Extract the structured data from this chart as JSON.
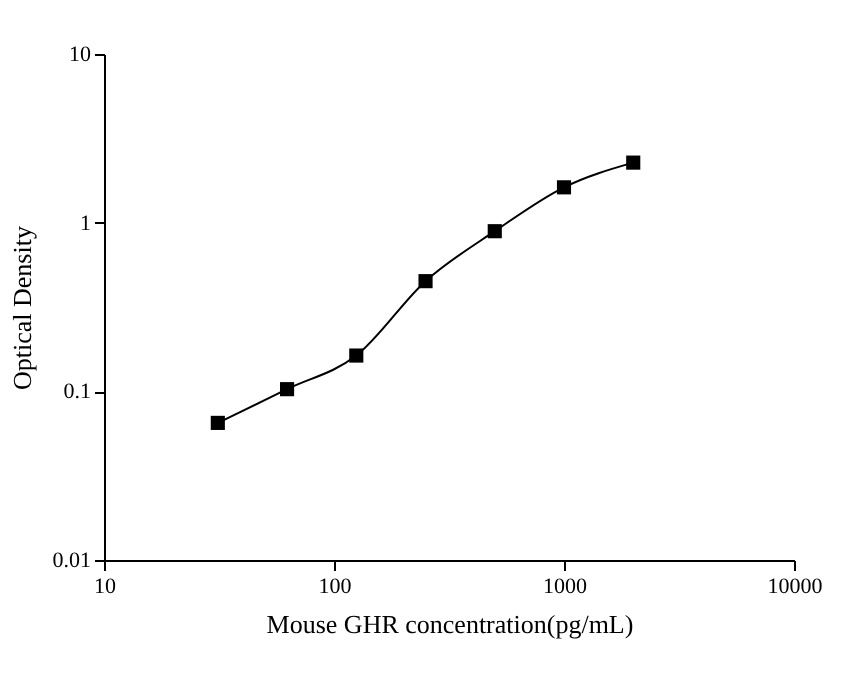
{
  "chart_data": {
    "type": "line",
    "xlabel": "Mouse GHR concentration(pg/mL)",
    "ylabel": "Optical Density",
    "x": [
      31.25,
      62.5,
      125,
      250,
      500,
      1000,
      2000
    ],
    "series": [
      {
        "color": "#000000",
        "values": [
          0.065,
          0.103,
          0.163,
          0.45,
          0.89,
          1.62,
          2.27
        ]
      }
    ],
    "log": "xy",
    "xlim": [
      10,
      10000
    ],
    "xticks": [
      10,
      100,
      1000,
      10000
    ],
    "ylim": [
      0.01,
      10
    ],
    "yticks": [
      0.01,
      0.1,
      1,
      10
    ],
    "marker": "square",
    "line_style": "solid",
    "grid": false
  }
}
